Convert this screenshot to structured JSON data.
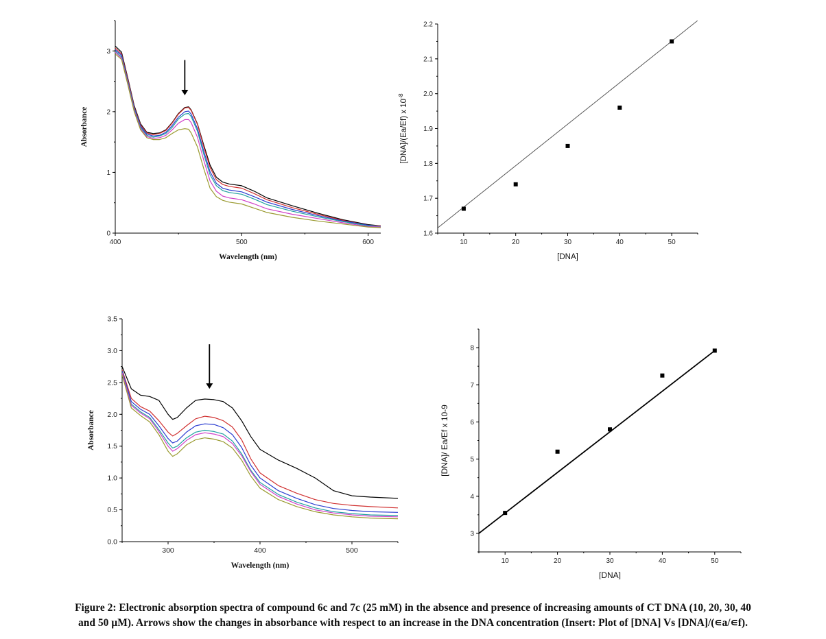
{
  "caption": {
    "line1": "Figure 2: Electronic absorption spectra of compound 6c and 7c (25 mM) in the absence and presence of increasing amounts of CT DNA (10, 20, 30, 40",
    "line2": "and 50 µM). Arrows show the changes in absorbance with respect to an increase in the DNA concentration (Insert: Plot of [DNA] Vs [DNA]/(∊a/∊f)."
  },
  "chart_data": [
    {
      "type": "line",
      "xlabel": "Wavelength (nm)",
      "ylabel": "Absorbance",
      "xlim": [
        400,
        610
      ],
      "ylim": [
        0,
        3.5
      ],
      "xticks": [
        400,
        500,
        600
      ],
      "yticks": [
        0,
        1,
        2,
        3
      ],
      "arrow": {
        "x": 455,
        "y_from": 2.85,
        "y_to": 2.27,
        "direction": "down"
      },
      "x": [
        400,
        405,
        410,
        415,
        420,
        425,
        430,
        435,
        440,
        445,
        450,
        455,
        458,
        460,
        465,
        470,
        475,
        480,
        485,
        490,
        500,
        510,
        520,
        540,
        560,
        580,
        600,
        610
      ],
      "series": [
        {
          "color": "#000000",
          "values": [
            3.08,
            2.98,
            2.55,
            2.1,
            1.8,
            1.66,
            1.64,
            1.65,
            1.7,
            1.82,
            1.97,
            2.07,
            2.08,
            2.03,
            1.8,
            1.45,
            1.12,
            0.92,
            0.84,
            0.81,
            0.78,
            0.69,
            0.58,
            0.45,
            0.33,
            0.22,
            0.14,
            0.12
          ]
        },
        {
          "color": "#d03030",
          "values": [
            3.05,
            2.95,
            2.53,
            2.08,
            1.78,
            1.65,
            1.62,
            1.64,
            1.69,
            1.81,
            1.96,
            2.06,
            2.07,
            2.02,
            1.79,
            1.42,
            1.08,
            0.88,
            0.8,
            0.77,
            0.74,
            0.65,
            0.55,
            0.42,
            0.31,
            0.21,
            0.13,
            0.12
          ]
        },
        {
          "color": "#2a3cd0",
          "values": [
            3.02,
            2.93,
            2.5,
            2.06,
            1.76,
            1.63,
            1.6,
            1.61,
            1.66,
            1.77,
            1.91,
            2.0,
            2.01,
            1.96,
            1.72,
            1.35,
            1.01,
            0.82,
            0.74,
            0.71,
            0.68,
            0.6,
            0.51,
            0.39,
            0.29,
            0.2,
            0.13,
            0.11
          ]
        },
        {
          "color": "#20a0a0",
          "values": [
            3.0,
            2.9,
            2.48,
            2.04,
            1.74,
            1.61,
            1.58,
            1.6,
            1.64,
            1.74,
            1.88,
            1.96,
            1.97,
            1.92,
            1.68,
            1.3,
            0.96,
            0.78,
            0.7,
            0.67,
            0.64,
            0.56,
            0.47,
            0.36,
            0.27,
            0.19,
            0.12,
            0.11
          ]
        },
        {
          "color": "#d040c8",
          "values": [
            2.98,
            2.88,
            2.46,
            2.02,
            1.72,
            1.59,
            1.56,
            1.57,
            1.61,
            1.7,
            1.81,
            1.87,
            1.87,
            1.82,
            1.58,
            1.2,
            0.86,
            0.69,
            0.61,
            0.58,
            0.55,
            0.48,
            0.4,
            0.31,
            0.24,
            0.17,
            0.11,
            0.1
          ]
        },
        {
          "color": "#9a9a30",
          "values": [
            2.95,
            2.86,
            2.44,
            2.0,
            1.7,
            1.57,
            1.54,
            1.54,
            1.57,
            1.64,
            1.7,
            1.72,
            1.71,
            1.65,
            1.42,
            1.06,
            0.74,
            0.6,
            0.54,
            0.51,
            0.48,
            0.41,
            0.34,
            0.26,
            0.2,
            0.15,
            0.1,
            0.09
          ]
        }
      ]
    },
    {
      "type": "scatter",
      "xlabel": "[DNA]",
      "ylabel": "[DNA]/(Ea/Ef) x 10",
      "ylabel_sup": "-8",
      "xlim": [
        5,
        55
      ],
      "ylim": [
        1.6,
        2.2
      ],
      "xticks": [
        10,
        20,
        30,
        40,
        50
      ],
      "yticks": [
        1.6,
        1.7,
        1.8,
        1.9,
        2.0,
        2.1,
        2.2
      ],
      "tick_decimals": 1,
      "points": {
        "x": [
          10,
          20,
          30,
          40,
          50
        ],
        "y": [
          1.67,
          1.74,
          1.85,
          1.96,
          2.15
        ]
      },
      "fit_line": {
        "x": [
          5,
          55
        ],
        "y": [
          1.615,
          2.21
        ]
      }
    },
    {
      "type": "line",
      "xlabel": "Wavelength (nm)",
      "ylabel": "Absorbance",
      "xlim": [
        250,
        550
      ],
      "ylim": [
        0,
        3.5
      ],
      "xticks": [
        300,
        400,
        500
      ],
      "yticks": [
        0.0,
        0.5,
        1.0,
        1.5,
        2.0,
        2.5,
        3.0,
        3.5
      ],
      "tick_decimals": 1,
      "arrow": {
        "x": 345,
        "y_from": 3.1,
        "y_to": 2.4,
        "direction": "down"
      },
      "x": [
        250,
        260,
        270,
        280,
        290,
        300,
        305,
        310,
        320,
        330,
        340,
        350,
        360,
        370,
        380,
        390,
        400,
        420,
        440,
        460,
        480,
        500,
        520,
        550
      ],
      "series": [
        {
          "color": "#000000",
          "values": [
            2.75,
            2.4,
            2.3,
            2.28,
            2.22,
            2.0,
            1.92,
            1.95,
            2.1,
            2.22,
            2.24,
            2.23,
            2.2,
            2.1,
            1.9,
            1.65,
            1.45,
            1.28,
            1.15,
            1.0,
            0.8,
            0.72,
            0.7,
            0.68
          ]
        },
        {
          "color": "#d03030",
          "values": [
            2.7,
            2.25,
            2.12,
            2.05,
            1.9,
            1.72,
            1.66,
            1.7,
            1.82,
            1.93,
            1.97,
            1.95,
            1.9,
            1.8,
            1.6,
            1.3,
            1.08,
            0.88,
            0.76,
            0.66,
            0.6,
            0.57,
            0.55,
            0.53
          ]
        },
        {
          "color": "#2a3cd0",
          "values": [
            2.68,
            2.2,
            2.08,
            2.0,
            1.82,
            1.62,
            1.55,
            1.58,
            1.72,
            1.82,
            1.85,
            1.84,
            1.79,
            1.68,
            1.48,
            1.2,
            1.0,
            0.8,
            0.68,
            0.58,
            0.52,
            0.49,
            0.47,
            0.46
          ]
        },
        {
          "color": "#20a0a0",
          "values": [
            2.66,
            2.16,
            2.04,
            1.95,
            1.76,
            1.55,
            1.47,
            1.5,
            1.63,
            1.72,
            1.75,
            1.73,
            1.69,
            1.58,
            1.38,
            1.12,
            0.93,
            0.74,
            0.62,
            0.53,
            0.47,
            0.44,
            0.42,
            0.41
          ]
        },
        {
          "color": "#d040c8",
          "values": [
            2.65,
            2.14,
            2.02,
            1.93,
            1.73,
            1.5,
            1.42,
            1.46,
            1.59,
            1.68,
            1.71,
            1.69,
            1.65,
            1.54,
            1.35,
            1.1,
            0.9,
            0.71,
            0.59,
            0.5,
            0.45,
            0.42,
            0.4,
            0.39
          ]
        },
        {
          "color": "#9a9a30",
          "values": [
            2.62,
            2.1,
            1.98,
            1.88,
            1.68,
            1.42,
            1.34,
            1.38,
            1.52,
            1.6,
            1.63,
            1.61,
            1.57,
            1.47,
            1.28,
            1.03,
            0.84,
            0.66,
            0.55,
            0.47,
            0.42,
            0.39,
            0.37,
            0.36
          ]
        }
      ]
    },
    {
      "type": "scatter",
      "xlabel": "[DNA]",
      "ylabel": "[DNA]/ Ea/Ef x 10-9",
      "xlim": [
        5,
        55
      ],
      "ylim": [
        2.5,
        8.5
      ],
      "xticks": [
        10,
        20,
        30,
        40,
        50
      ],
      "yticks": [
        3,
        4,
        5,
        6,
        7,
        8
      ],
      "tick_decimals": 0,
      "points": {
        "x": [
          10,
          20,
          30,
          40,
          50
        ],
        "y": [
          3.55,
          5.2,
          5.8,
          7.25,
          7.92
        ]
      },
      "fit_line": {
        "x": [
          5,
          50
        ],
        "y": [
          3.0,
          7.92
        ]
      }
    }
  ]
}
